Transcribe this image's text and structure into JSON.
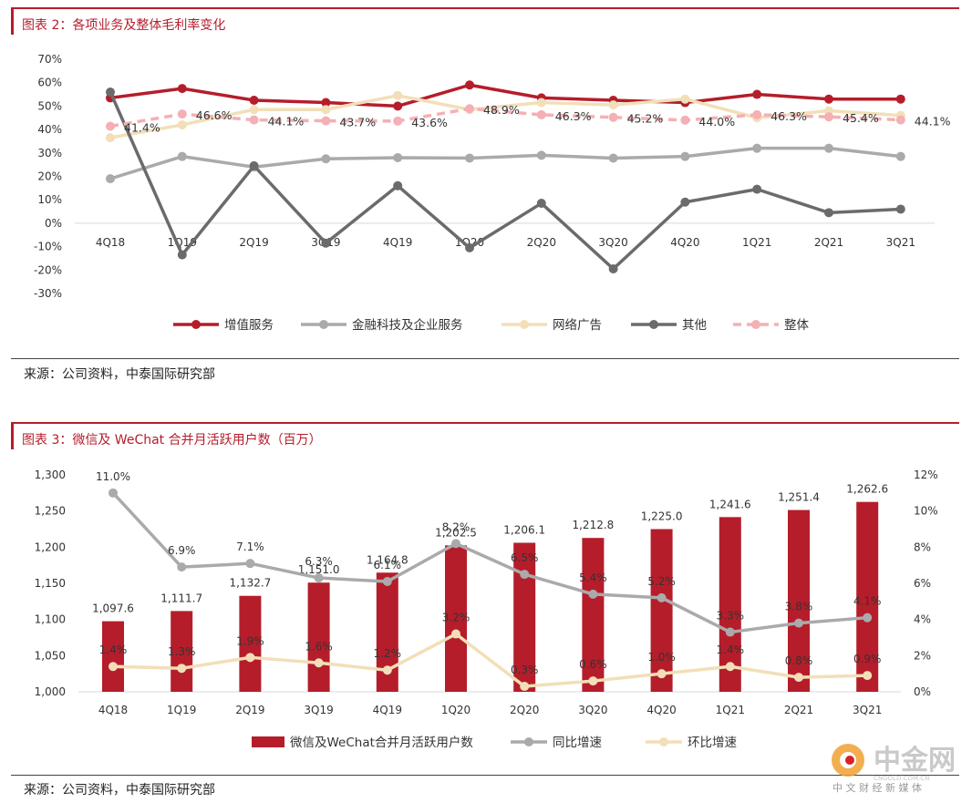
{
  "figure1": {
    "title": "图表 2：各项业务及整体毛利率变化",
    "source": "来源：公司资料，中泰国际研究部"
  },
  "figure2": {
    "title": "图表 3：微信及 WeChat 合并月活跃用户数（百万）",
    "source": "来源：公司资料，中泰国际研究部"
  },
  "watermark": {
    "name": "中金网",
    "sub": "中 文 财 经 新 媒 体",
    "url": "CNGOLD.COM.CN"
  },
  "colors": {
    "accent": "#b51d2b",
    "gray": "#aaaaaa",
    "beige": "#f2dfb8",
    "dark": "#6b6b6b",
    "pink": "#f4b0b4"
  },
  "chart_data": [
    {
      "type": "line",
      "categories": [
        "4Q18",
        "1Q19",
        "2Q19",
        "3Q19",
        "4Q19",
        "1Q20",
        "2Q20",
        "3Q20",
        "4Q20",
        "1Q21",
        "2Q21",
        "3Q21"
      ],
      "ylim": [
        -30,
        70
      ],
      "yticks": [
        "-30%",
        "-20%",
        "-10%",
        "0%",
        "10%",
        "20%",
        "30%",
        "40%",
        "50%",
        "60%",
        "70%"
      ],
      "grid": false,
      "legend": "bottom",
      "series": [
        {
          "name": "增值服务",
          "color": "#b51d2b",
          "dash": false,
          "values": [
            53.5,
            57.5,
            52.5,
            51.5,
            50.0,
            59.0,
            53.5,
            52.5,
            51.5,
            55.0,
            53.0,
            53.0
          ]
        },
        {
          "name": "金融科技及企业服务",
          "color": "#aaaaaa",
          "dash": false,
          "values": [
            19.0,
            28.5,
            24.0,
            27.5,
            28.0,
            27.8,
            29.0,
            27.8,
            28.5,
            32.0,
            32.0,
            28.5
          ]
        },
        {
          "name": "网络广告",
          "color": "#f2dfb8",
          "dash": false,
          "values": [
            36.5,
            42.0,
            48.5,
            48.5,
            54.5,
            48.5,
            51.5,
            50.5,
            53.0,
            45.0,
            48.0,
            46.0
          ]
        },
        {
          "name": "其他",
          "color": "#6b6b6b",
          "dash": false,
          "values": [
            56.0,
            -13.5,
            24.5,
            -8.5,
            16.0,
            -10.5,
            8.5,
            -19.5,
            9.0,
            14.5,
            4.5,
            6.0
          ]
        },
        {
          "name": "整体",
          "color": "#f4b0b4",
          "dash": true,
          "values": [
            41.4,
            46.6,
            44.1,
            43.7,
            43.6,
            48.9,
            46.3,
            45.2,
            44.0,
            46.3,
            45.4,
            44.1
          ],
          "labels": [
            "41.4%",
            "46.6%",
            "44.1%",
            "43.7%",
            "43.6%",
            "48.9%",
            "46.3%",
            "45.2%",
            "44.0%",
            "46.3%",
            "45.4%",
            "44.1%"
          ]
        }
      ]
    },
    {
      "type": "bar",
      "categories": [
        "4Q18",
        "1Q19",
        "2Q19",
        "3Q19",
        "4Q19",
        "1Q20",
        "2Q20",
        "3Q20",
        "4Q20",
        "1Q21",
        "2Q21",
        "3Q21"
      ],
      "ylim": [
        1000,
        1300
      ],
      "yticks": [
        "1,000",
        "1,050",
        "1,100",
        "1,150",
        "1,200",
        "1,250",
        "1,300"
      ],
      "y2lim": [
        0,
        12
      ],
      "y2ticks": [
        "0%",
        "2%",
        "4%",
        "6%",
        "8%",
        "10%",
        "12%"
      ],
      "legend": "bottom",
      "bars": {
        "name": "微信及WeChat合并月活跃用户数",
        "color": "#b51d2b",
        "values": [
          1097.6,
          1111.7,
          1132.7,
          1151.0,
          1164.8,
          1202.5,
          1206.1,
          1212.8,
          1225.0,
          1241.6,
          1251.4,
          1262.6
        ],
        "labels": [
          "1,097.6",
          "1,111.7",
          "1,132.7",
          "1,151.0",
          "1,164.8",
          "1,202.5",
          "1,206.1",
          "1,212.8",
          "1,225.0",
          "1,241.6",
          "1,251.4",
          "1,262.6"
        ]
      },
      "series": [
        {
          "name": "同比增速",
          "color": "#aaaaaa",
          "axis": "right",
          "values": [
            11.0,
            6.9,
            7.1,
            6.3,
            6.1,
            8.2,
            6.5,
            5.4,
            5.2,
            3.3,
            3.8,
            4.1
          ],
          "labels": [
            "11.0%",
            "6.9%",
            "7.1%",
            "6.3%",
            "6.1%",
            "8.2%",
            "6.5%",
            "5.4%",
            "5.2%",
            "3.3%",
            "3.8%",
            "4.1%"
          ]
        },
        {
          "name": "环比增速",
          "color": "#f2dfb8",
          "axis": "right",
          "values": [
            1.4,
            1.3,
            1.9,
            1.6,
            1.2,
            3.2,
            0.3,
            0.6,
            1.0,
            1.4,
            0.8,
            0.9
          ],
          "labels": [
            "1.4%",
            "1.3%",
            "1.9%",
            "1.6%",
            "1.2%",
            "3.2%",
            "0.3%",
            "0.6%",
            "1.0%",
            "1.4%",
            "0.8%",
            "0.9%"
          ]
        }
      ]
    }
  ]
}
